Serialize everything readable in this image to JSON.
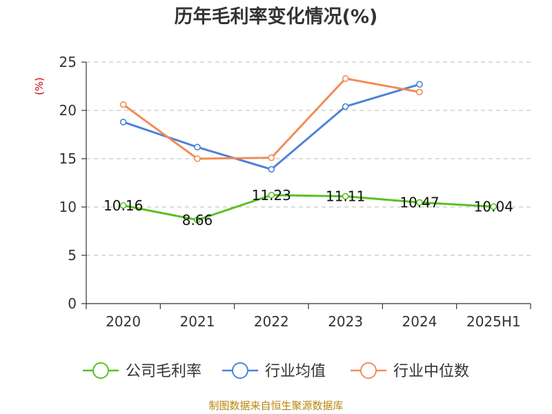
{
  "chart_data": {
    "type": "line",
    "title": "历年毛利率变化情况(%)",
    "ylabel": "(%)",
    "categories": [
      "2020",
      "2021",
      "2022",
      "2023",
      "2024",
      "2025H1"
    ],
    "y_ticks": [
      "0",
      "5",
      "10",
      "15",
      "20",
      "25"
    ],
    "ylim": [
      0,
      25
    ],
    "grid": "horizontal dashed",
    "legend_position": "bottom",
    "series": [
      {
        "name": "公司毛利率",
        "color": "#5ac023",
        "values": [
          10.16,
          8.66,
          11.23,
          11.11,
          10.47,
          10.04
        ],
        "labels": [
          "10.16",
          "8.66",
          "11.23",
          "11.11",
          "10.47",
          "10.04"
        ]
      },
      {
        "name": "行业均值",
        "color": "#4f81d9",
        "values": [
          18.8,
          16.2,
          13.9,
          20.4,
          22.7,
          null
        ]
      },
      {
        "name": "行业中位数",
        "color": "#f28c55",
        "values": [
          20.6,
          15.0,
          15.1,
          23.3,
          21.9,
          null
        ]
      }
    ],
    "source": "制图数据来自恒生聚源数据库"
  }
}
